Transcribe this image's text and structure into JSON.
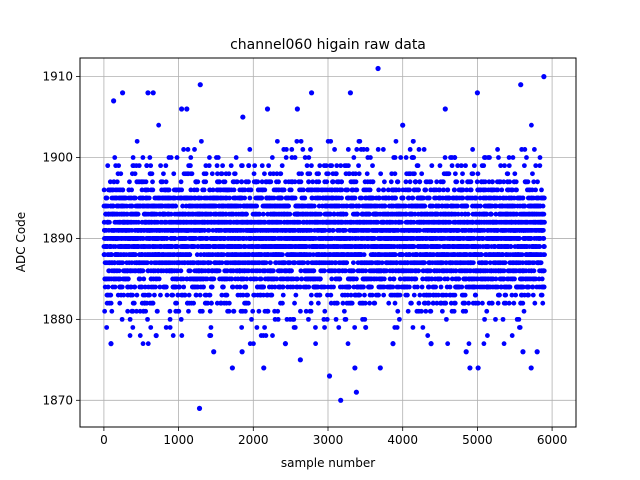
{
  "chart_data": {
    "type": "scatter",
    "title": "channel060 higain raw data",
    "xlabel": "sample number",
    "ylabel": "ADC Code",
    "xlim": [
      -320,
      6320
    ],
    "ylim": [
      1866.7,
      1912.3
    ],
    "xticks": [
      0,
      1000,
      2000,
      3000,
      4000,
      5000,
      6000
    ],
    "yticks": [
      1870,
      1880,
      1890,
      1900,
      1910
    ],
    "grid": true,
    "marker_color": "#0000ff",
    "n_points": 5900,
    "core_range": [
      1880,
      1900
    ],
    "center": 1890,
    "outliers": [
      [
        130,
        1907
      ],
      [
        250,
        1908
      ],
      [
        590,
        1908
      ],
      [
        660,
        1908
      ],
      [
        1040,
        1906
      ],
      [
        1110,
        1906
      ],
      [
        1290,
        1909
      ],
      [
        1280,
        1869
      ],
      [
        1470,
        1876
      ],
      [
        1720,
        1874
      ],
      [
        1860,
        1905
      ],
      [
        2190,
        1906
      ],
      [
        2140,
        1874
      ],
      [
        2590,
        1906
      ],
      [
        2630,
        1875
      ],
      [
        2780,
        1908
      ],
      [
        3020,
        1873
      ],
      [
        3170,
        1870
      ],
      [
        3300,
        1908
      ],
      [
        3380,
        1871
      ],
      [
        3360,
        1874
      ],
      [
        3670,
        1911
      ],
      [
        3700,
        1874
      ],
      [
        4000,
        1904
      ],
      [
        4570,
        1906
      ],
      [
        4850,
        1876
      ],
      [
        4900,
        1874
      ],
      [
        5000,
        1908
      ],
      [
        5010,
        1874
      ],
      [
        5580,
        1909
      ],
      [
        5610,
        1876
      ],
      [
        5720,
        1874
      ],
      [
        5800,
        1876
      ],
      [
        5890,
        1910
      ],
      [
        1850,
        1876
      ],
      [
        2430,
        1877
      ],
      [
        700,
        1878
      ],
      [
        3870,
        1877
      ],
      [
        4380,
        1877
      ],
      [
        95,
        1877
      ]
    ]
  }
}
